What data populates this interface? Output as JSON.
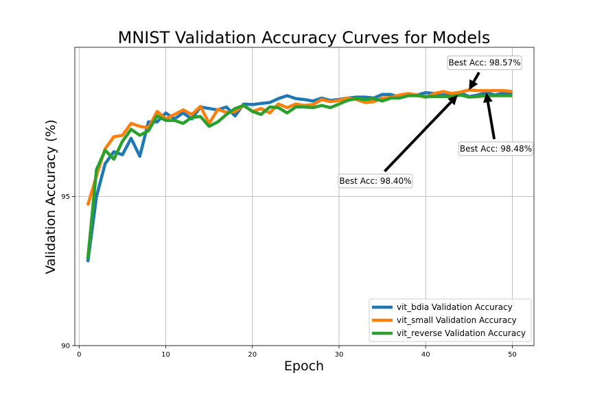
{
  "chart_data": {
    "type": "line",
    "title": "MNIST Validation Accuracy Curves for Models",
    "xlabel": "Epoch",
    "ylabel": "Validation Accuracy (%)",
    "xlim": [
      -0.5,
      52.5
    ],
    "ylim": [
      90,
      100
    ],
    "xticks": [
      0,
      10,
      20,
      30,
      40,
      50
    ],
    "yticks": [
      90,
      95
    ],
    "xtick_labels": [
      "0",
      "10",
      "20",
      "30",
      "40",
      "50"
    ],
    "ytick_labels": [
      "90",
      "95"
    ],
    "grid": true,
    "legend_placement": "lower-right",
    "x": [
      1,
      2,
      3,
      4,
      5,
      6,
      7,
      8,
      9,
      10,
      11,
      12,
      13,
      14,
      15,
      16,
      17,
      18,
      19,
      20,
      21,
      22,
      23,
      24,
      25,
      26,
      27,
      28,
      29,
      30,
      31,
      32,
      33,
      34,
      35,
      36,
      37,
      38,
      39,
      40,
      41,
      42,
      43,
      44,
      45,
      46,
      47,
      48,
      49,
      50
    ],
    "series": [
      {
        "name": "vit_bdia Validation Accuracy",
        "color": "#1f77b4",
        "values": [
          92.8,
          95.0,
          96.1,
          96.5,
          96.4,
          96.95,
          96.35,
          97.5,
          97.5,
          97.8,
          97.6,
          97.8,
          97.6,
          98.0,
          97.95,
          97.9,
          98.0,
          97.7,
          98.1,
          98.08,
          98.12,
          98.15,
          98.28,
          98.38,
          98.28,
          98.25,
          98.2,
          98.3,
          98.22,
          98.25,
          98.3,
          98.33,
          98.33,
          98.3,
          98.42,
          98.42,
          98.32,
          98.42,
          98.4,
          98.48,
          98.45,
          98.4,
          98.45,
          98.48,
          98.35,
          98.4,
          98.48,
          98.4,
          98.47,
          98.45
        ]
      },
      {
        "name": "vit_small Validation Accuracy",
        "color": "#ff7f0e",
        "values": [
          94.7,
          95.7,
          96.6,
          97.0,
          97.05,
          97.45,
          97.35,
          97.3,
          97.85,
          97.6,
          97.75,
          97.9,
          97.75,
          98.02,
          97.45,
          97.92,
          97.82,
          97.85,
          98.05,
          97.85,
          97.95,
          97.8,
          98.1,
          97.98,
          98.1,
          98.05,
          98.08,
          98.25,
          98.18,
          98.22,
          98.3,
          98.25,
          98.15,
          98.18,
          98.3,
          98.32,
          98.4,
          98.45,
          98.4,
          98.32,
          98.45,
          98.52,
          98.45,
          98.5,
          98.57,
          98.55,
          98.55,
          98.55,
          98.55,
          98.52
        ]
      },
      {
        "name": "vit_reverse Validation Accuracy",
        "color": "#2ca02c",
        "values": [
          92.9,
          95.9,
          96.55,
          96.25,
          96.85,
          97.25,
          97.05,
          97.2,
          97.7,
          97.55,
          97.55,
          97.45,
          97.65,
          97.68,
          97.35,
          97.5,
          97.75,
          97.95,
          98.05,
          97.85,
          97.75,
          98.0,
          97.98,
          97.8,
          98.0,
          98.0,
          97.98,
          98.05,
          97.98,
          98.1,
          98.22,
          98.28,
          98.25,
          98.28,
          98.2,
          98.3,
          98.3,
          98.38,
          98.38,
          98.35,
          98.35,
          98.35,
          98.35,
          98.4,
          98.33,
          98.35,
          98.38,
          98.38,
          98.38,
          98.38
        ]
      }
    ],
    "annotations": [
      {
        "text": "Best Acc: 98.57%",
        "target": [
          45,
          98.57
        ],
        "text_at": [
          46.8,
          99.48
        ]
      },
      {
        "text": "Best Acc: 98.48%",
        "target": [
          47,
          98.48
        ],
        "text_at": [
          48.1,
          96.6
        ]
      },
      {
        "text": "Best Acc: 98.40%",
        "target": [
          43.7,
          98.4
        ],
        "text_at": [
          34.2,
          95.52
        ]
      }
    ]
  }
}
